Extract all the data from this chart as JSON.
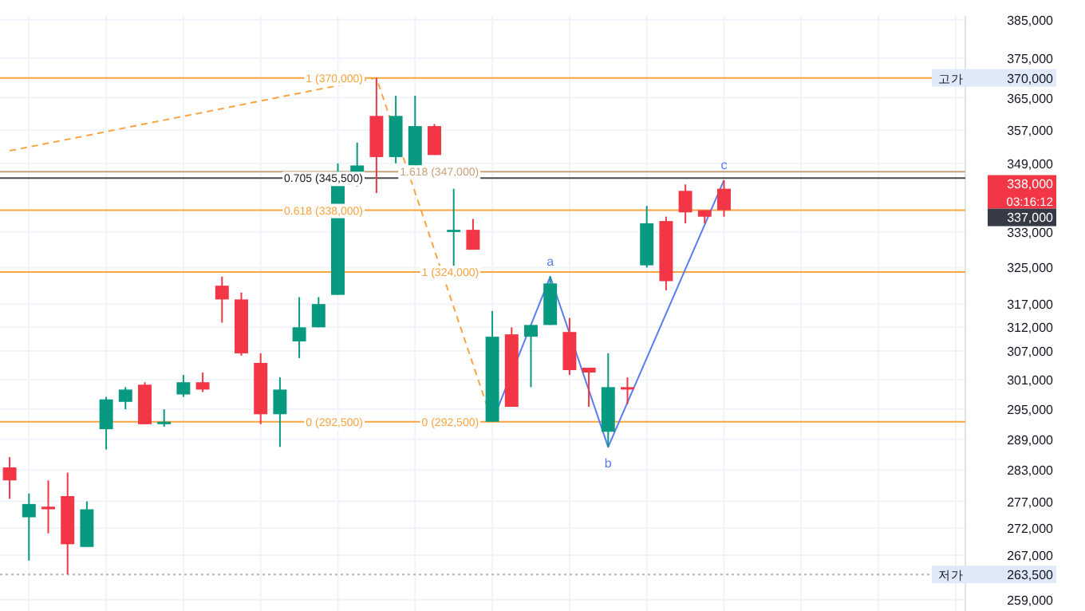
{
  "chart_data": {
    "type": "candlestick",
    "log": true,
    "grid": true,
    "tick_labels": "y",
    "categories": [
      null,
      null,
      null,
      null,
      null,
      null,
      null,
      null,
      null,
      null,
      null,
      null,
      null,
      null,
      null,
      null,
      null,
      null,
      null,
      null,
      null,
      null,
      null,
      null,
      null,
      null,
      null,
      null,
      null,
      null,
      null,
      null,
      null,
      null,
      null,
      null,
      null,
      null,
      null,
      null,
      null,
      null,
      null,
      null,
      null,
      null,
      null,
      null,
      null,
      null
    ],
    "ohlc": [
      [
        283500,
        285500,
        277500,
        281000
      ],
      [
        274000,
        278500,
        266000,
        276500
      ],
      [
        276000,
        281000,
        271000,
        275500
      ],
      [
        278000,
        282500,
        263500,
        269000
      ],
      [
        268500,
        277000,
        268500,
        275500
      ],
      [
        291000,
        297500,
        287000,
        297000
      ],
      [
        296500,
        299500,
        295000,
        299000
      ],
      [
        300000,
        300500,
        292000,
        292000
      ],
      [
        292000,
        295000,
        291500,
        292500
      ],
      [
        298000,
        302000,
        297500,
        300500
      ],
      [
        300500,
        302500,
        298500,
        299000
      ],
      [
        321000,
        323000,
        313000,
        318000
      ],
      [
        318000,
        319500,
        306000,
        306500
      ],
      [
        304500,
        306500,
        292000,
        294000
      ],
      [
        294000,
        301500,
        287500,
        299000
      ],
      [
        309000,
        318500,
        305500,
        312000
      ],
      [
        312000,
        318500,
        312000,
        317000
      ],
      [
        319000,
        349000,
        319000,
        347000
      ],
      [
        346500,
        354000,
        343500,
        348500
      ],
      [
        360500,
        370000,
        342000,
        350500
      ],
      [
        350500,
        365500,
        349000,
        360500
      ],
      [
        348500,
        365500,
        348000,
        358000
      ],
      [
        358000,
        358500,
        351000,
        351000
      ],
      [
        333000,
        343000,
        324500,
        333500
      ],
      [
        333500,
        336000,
        329000,
        329000
      ],
      [
        292500,
        315500,
        292500,
        310000
      ],
      [
        310500,
        312000,
        295500,
        295500
      ],
      [
        310000,
        312500,
        299500,
        312500
      ],
      [
        312500,
        323000,
        312500,
        321500
      ],
      [
        311000,
        314000,
        302000,
        303000
      ],
      [
        303500,
        303500,
        295500,
        302500
      ],
      [
        290500,
        306500,
        287500,
        299500
      ],
      [
        299500,
        301500,
        296000,
        299000
      ],
      [
        325500,
        339000,
        325000,
        335000
      ],
      [
        335500,
        336500,
        320000,
        322000
      ],
      [
        342500,
        344000,
        335000,
        337500
      ],
      [
        338000,
        338000,
        335000,
        336500
      ],
      [
        343000,
        345000,
        336500,
        338000
      ],
      null,
      null,
      null,
      null,
      null,
      null,
      null,
      null,
      null,
      null,
      null,
      null
    ],
    "colors": [
      "#f23645",
      "#089981",
      "#f23645",
      "#f23645",
      "#089981",
      "#089981",
      "#089981",
      "#f23645",
      "#089981",
      "#089981",
      "#f23645",
      "#f23645",
      "#f23645",
      "#f23645",
      "#089981",
      "#089981",
      "#089981",
      "#089981",
      "#089981",
      "#f23645",
      "#089981",
      "#089981",
      "#f23645",
      "#089981",
      "#f23645",
      "#089981",
      "#f23645",
      "#089981",
      "#089981",
      "#f23645",
      "#f23645",
      "#089981",
      "#f23645",
      "#089981",
      "#f23645",
      "#f23645",
      "#f23645",
      "#f23645",
      null,
      null,
      null,
      null,
      null,
      null,
      null,
      null,
      null,
      null,
      null,
      null
    ],
    "series": [
      {
        "type": "line",
        "color": "#5b7cf0",
        "line_style": "solid",
        "values": [
          null,
          null,
          null,
          null,
          null,
          null,
          null,
          null,
          null,
          null,
          null,
          null,
          null,
          null,
          null,
          null,
          null,
          null,
          null,
          null,
          null,
          null,
          null,
          null,
          null,
          292500,
          null,
          null,
          323000,
          null,
          null,
          287500,
          null,
          null,
          null,
          null,
          null,
          345000,
          null,
          null,
          null,
          null,
          null,
          null,
          null,
          null,
          null,
          null,
          null,
          null
        ]
      },
      {
        "type": "line",
        "color": "#f7a541",
        "line_style": "dashed",
        "values": [
          352000,
          null,
          null,
          null,
          null,
          null,
          null,
          null,
          null,
          null,
          null,
          null,
          null,
          null,
          null,
          null,
          null,
          null,
          null,
          370000,
          null,
          null,
          null,
          null,
          null,
          292500,
          null,
          null,
          null,
          null,
          null,
          null,
          null,
          null,
          null,
          null,
          null,
          null,
          null,
          null,
          null,
          null,
          null,
          null,
          null,
          null,
          null,
          null,
          null,
          null
        ]
      }
    ],
    "ylim": [
      257000,
      386000
    ],
    "yticks": [
      {
        "value": 385000,
        "label": "385,000"
      },
      {
        "value": 375000,
        "label": "375,000"
      },
      {
        "value": 365000,
        "label": "365,000"
      },
      {
        "value": 357000,
        "label": "357,000"
      },
      {
        "value": 349000,
        "label": "349,000"
      },
      {
        "value": 333000,
        "label": "333,000"
      },
      {
        "value": 325000,
        "label": "325,000"
      },
      {
        "value": 317000,
        "label": "317,000"
      },
      {
        "value": 312000,
        "label": "312,000"
      },
      {
        "value": 307000,
        "label": "307,000"
      },
      {
        "value": 301000,
        "label": "301,000"
      },
      {
        "value": 295000,
        "label": "295,000"
      },
      {
        "value": 289000,
        "label": "289,000"
      },
      {
        "value": 283000,
        "label": "283,000"
      },
      {
        "value": 277000,
        "label": "277,000"
      },
      {
        "value": 272000,
        "label": "272,000"
      },
      {
        "value": 267000,
        "label": "267,000"
      },
      {
        "value": 259000,
        "label": "259,000"
      }
    ],
    "ref_lines": [
      {
        "axis": "y",
        "value": 370000,
        "label": "1 (370,000)",
        "color": "#f7a541",
        "line_style": "solid"
      },
      {
        "axis": "y",
        "value": 345500,
        "label": "0.705 (345,500)",
        "color": "#4a4a4a",
        "line_style": "solid"
      },
      {
        "axis": "y",
        "value": 338000,
        "label": "0.618 (338,000)",
        "color": "#f7a541",
        "line_style": "solid"
      },
      {
        "axis": "y",
        "value": 347000,
        "label": "1.618 (347,000)",
        "color": "#c9a27a",
        "line_style": "solid"
      },
      {
        "axis": "y",
        "value": 324000,
        "label": "1 (324,000)",
        "color": "#f7a541",
        "line_style": "solid"
      },
      {
        "axis": "y",
        "value": 292500,
        "label": "0 (292,500)",
        "color": "#f7a541",
        "line_style": "solid"
      },
      {
        "axis": "y",
        "value": 263500,
        "color": "#b2b5be",
        "line_style": "dotted"
      }
    ],
    "annotations": [
      "a",
      "b",
      "c",
      {
        "text": "0 (292,500)",
        "y": 292500
      },
      "고가",
      "370,000",
      "저가",
      "263,500",
      "338,000",
      "03:16:12",
      "337,000"
    ]
  }
}
